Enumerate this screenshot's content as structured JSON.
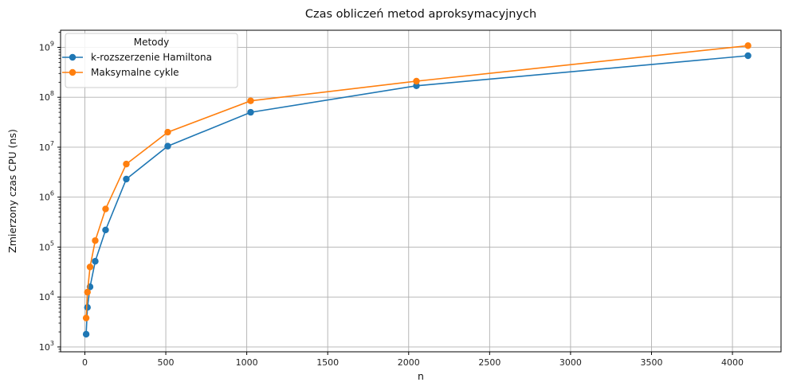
{
  "chart_data": {
    "type": "line",
    "title": "Czas obliczeń metod aproksymacyjnych",
    "xlabel": "n",
    "ylabel": "Zmierzony czas CPU (ns)",
    "y_scale": "log",
    "grid": true,
    "xlim": [
      -150,
      4300
    ],
    "ylim": [
      800,
      2200000000
    ],
    "x_ticks": [
      0,
      500,
      1000,
      1500,
      2000,
      2500,
      3000,
      3500,
      4000
    ],
    "x_tick_labels": [
      "0",
      "500",
      "1000",
      "1500",
      "2000",
      "2500",
      "3000",
      "3500",
      "4000"
    ],
    "y_ticks": [
      1000,
      10000,
      100000,
      1000000,
      10000000,
      100000000,
      1000000000
    ],
    "y_tick_labels": [
      {
        "base": "10",
        "exp": "3"
      },
      {
        "base": "10",
        "exp": "4"
      },
      {
        "base": "10",
        "exp": "5"
      },
      {
        "base": "10",
        "exp": "6"
      },
      {
        "base": "10",
        "exp": "7"
      },
      {
        "base": "10",
        "exp": "8"
      },
      {
        "base": "10",
        "exp": "9"
      }
    ],
    "legend": {
      "title": "Metody",
      "placement": "top-left"
    },
    "x": [
      8,
      16,
      32,
      64,
      128,
      256,
      512,
      1024,
      2048,
      4096
    ],
    "series": [
      {
        "name": "k-rozszerzenie Hamiltona",
        "color": "#1f77b4",
        "values": [
          1800,
          6200,
          16000,
          52000,
          220000,
          2300000,
          10500000,
          50000000,
          170000000,
          680000000
        ]
      },
      {
        "name": "Maksymalne cykle",
        "color": "#ff7f0e",
        "values": [
          3800,
          12500,
          40000,
          135000,
          580000,
          4600000,
          20000000,
          85000000,
          210000000,
          1080000000
        ]
      }
    ]
  }
}
